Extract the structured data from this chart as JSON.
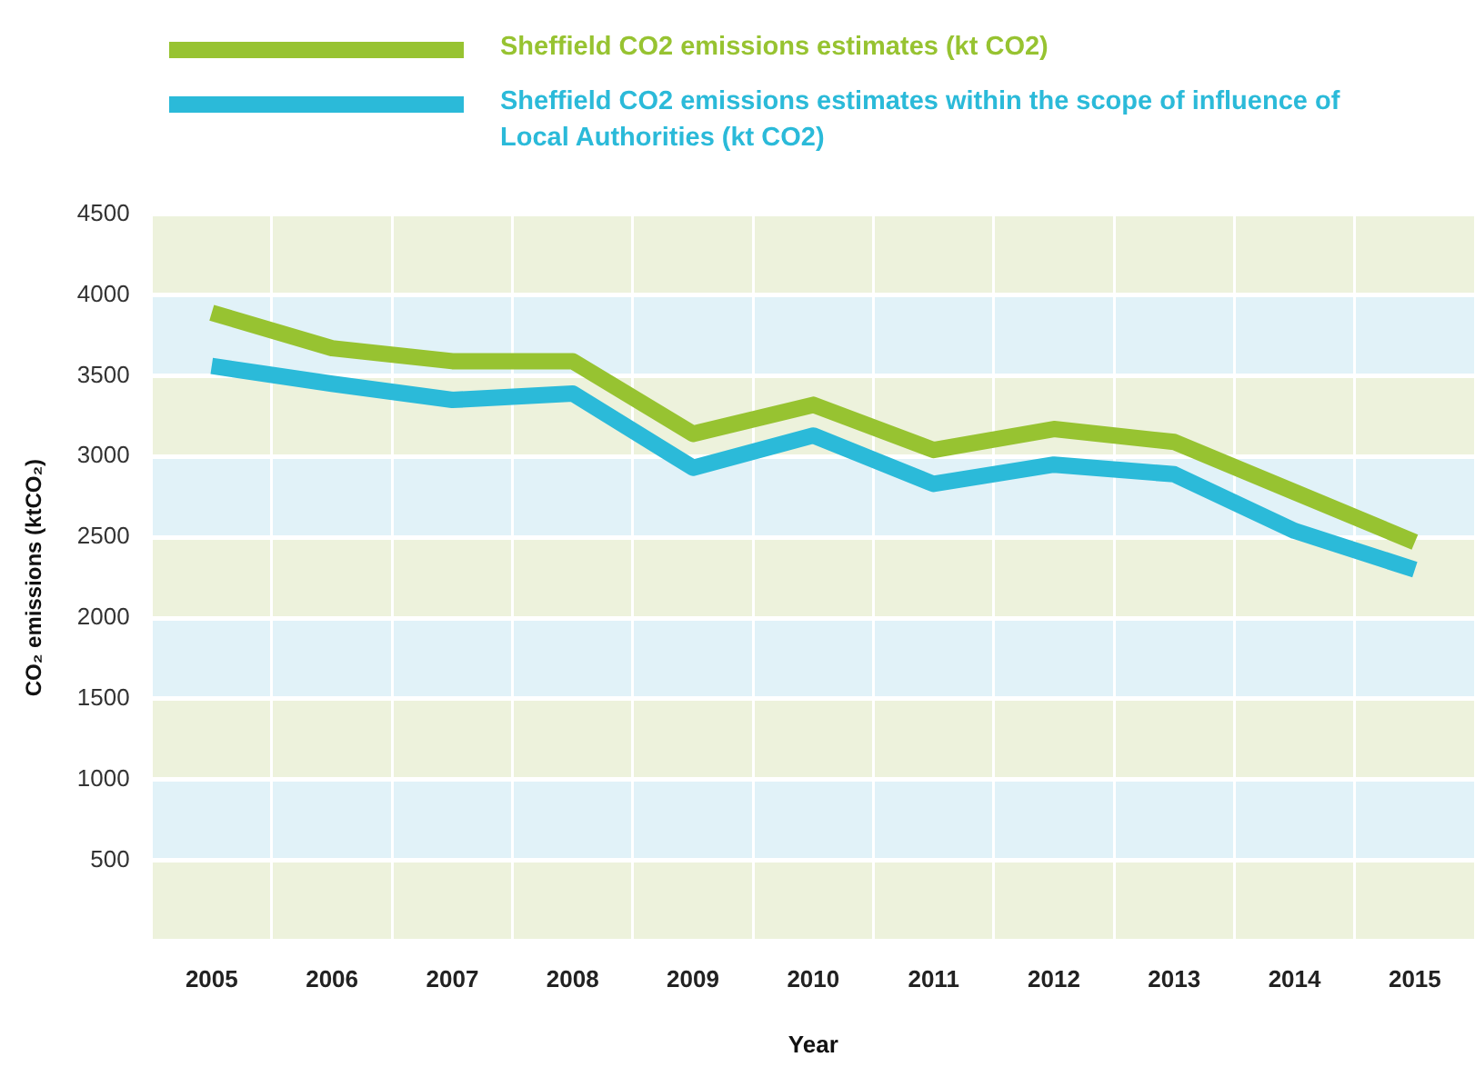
{
  "chart_data": {
    "type": "line",
    "xlabel": "Year",
    "ylabel": "CO₂ emissions (ktCO₂)",
    "categories": [
      "2005",
      "2006",
      "2007",
      "2008",
      "2009",
      "2010",
      "2011",
      "2012",
      "2013",
      "2014",
      "2015"
    ],
    "series": [
      {
        "name": "Sheffield CO2 emissions estimates (kt CO2)",
        "color": "#97c331",
        "values": [
          3890,
          3670,
          3590,
          3590,
          3140,
          3320,
          3040,
          3170,
          3090,
          2780,
          2470
        ]
      },
      {
        "name": "Sheffield CO2 emissions estimates within the scope of influence of Local Authorities (kt CO2)",
        "color": "#2bbad9",
        "values": [
          3560,
          3450,
          3350,
          3390,
          2930,
          3130,
          2830,
          2950,
          2890,
          2540,
          2300
        ]
      }
    ],
    "ylim": [
      0,
      4500
    ],
    "yticks": [
      {
        "value": 0,
        "label": null
      },
      500,
      1000,
      1500,
      2000,
      2500,
      3000,
      3500,
      4000,
      4500
    ],
    "bands": [
      {
        "axis": "y",
        "from": 0,
        "to": 500,
        "color": "#edf2dc"
      },
      {
        "axis": "y",
        "from": 500,
        "to": 1000,
        "color": "#e1f2f8"
      },
      {
        "axis": "y",
        "from": 1000,
        "to": 1500,
        "color": "#edf2dc"
      },
      {
        "axis": "y",
        "from": 1500,
        "to": 2000,
        "color": "#e1f2f8"
      },
      {
        "axis": "y",
        "from": 2000,
        "to": 2500,
        "color": "#edf2dc"
      },
      {
        "axis": "y",
        "from": 2500,
        "to": 3000,
        "color": "#e1f2f8"
      },
      {
        "axis": "y",
        "from": 3000,
        "to": 3500,
        "color": "#edf2dc"
      },
      {
        "axis": "y",
        "from": 3500,
        "to": 4000,
        "color": "#e1f2f8"
      },
      {
        "axis": "y",
        "from": 4000,
        "to": 4500,
        "color": "#edf2dc"
      }
    ],
    "grid": true,
    "legend": "top",
    "marker": "none",
    "line_style": "solid"
  }
}
